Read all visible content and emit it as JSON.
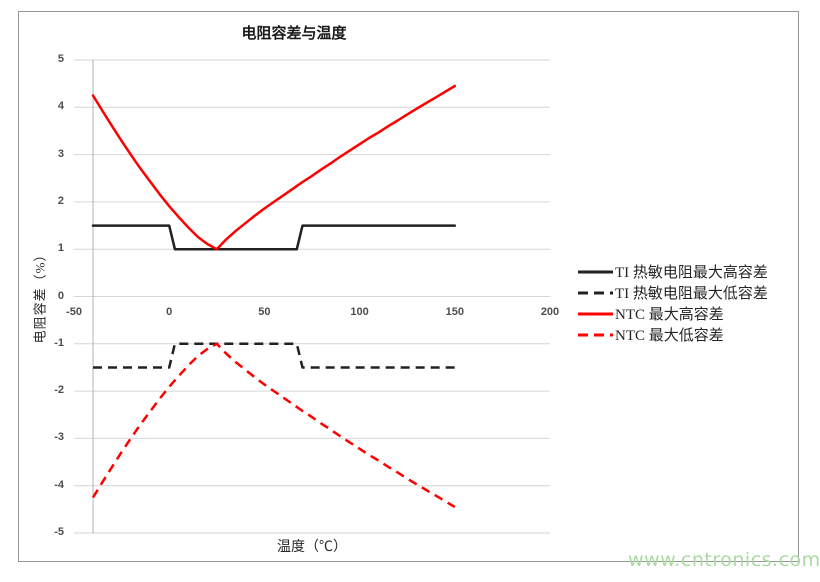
{
  "page": {
    "watermark": "www.cntronics.com"
  },
  "colors": {
    "grid": "#d6d6d6",
    "axis_line": "#b3b3b3",
    "chart_border": "#969696",
    "tick_label": "#4d4d4d",
    "title": "#1a1a1a",
    "black_series": "#212121",
    "red_series": "#fe0000",
    "watermark": "#abdba3"
  },
  "chart_data": {
    "type": "line",
    "title": "电阻容差与温度",
    "xlabel": "温度（℃）",
    "ylabel": "电阻容差（%）",
    "xlim": [
      -50,
      200
    ],
    "ylim": [
      -5,
      5
    ],
    "x_ticks": [
      -50,
      0,
      50,
      100,
      150,
      200
    ],
    "y_ticks": [
      5,
      4,
      3,
      2,
      1,
      0,
      -1,
      -2,
      -3,
      -4,
      -5
    ],
    "grid": "horizontal",
    "legend_position": "right",
    "y_axis_cross_x": -40,
    "series": [
      {
        "name": "TI 热敏电阻最大高容差",
        "color": "#212121",
        "dash": "solid",
        "points": [
          [
            -40,
            1.5
          ],
          [
            0,
            1.5
          ],
          [
            3,
            1.0
          ],
          [
            67,
            1.0
          ],
          [
            70,
            1.5
          ],
          [
            150,
            1.5
          ]
        ]
      },
      {
        "name": "TI 热敏电阻最大低容差",
        "color": "#212121",
        "dash": "dashed",
        "points": [
          [
            -40,
            -1.5
          ],
          [
            0,
            -1.5
          ],
          [
            3,
            -1.0
          ],
          [
            67,
            -1.0
          ],
          [
            70,
            -1.5
          ],
          [
            150,
            -1.5
          ]
        ]
      },
      {
        "name": "NTC 最大高容差",
        "color": "#fe0000",
        "dash": "solid",
        "points": [
          [
            -40,
            4.25
          ],
          [
            -35,
            3.92
          ],
          [
            -30,
            3.6
          ],
          [
            -25,
            3.29
          ],
          [
            -20,
            2.99
          ],
          [
            -15,
            2.7
          ],
          [
            -10,
            2.43
          ],
          [
            -5,
            2.16
          ],
          [
            0,
            1.91
          ],
          [
            5,
            1.68
          ],
          [
            10,
            1.46
          ],
          [
            15,
            1.26
          ],
          [
            20,
            1.11
          ],
          [
            25,
            1.0
          ],
          [
            30,
            1.21
          ],
          [
            35,
            1.39
          ],
          [
            40,
            1.55
          ],
          [
            45,
            1.71
          ],
          [
            50,
            1.86
          ],
          [
            55,
            2.0
          ],
          [
            60,
            2.14
          ],
          [
            65,
            2.28
          ],
          [
            70,
            2.42
          ],
          [
            75,
            2.55
          ],
          [
            80,
            2.69
          ],
          [
            85,
            2.82
          ],
          [
            90,
            2.96
          ],
          [
            95,
            3.09
          ],
          [
            100,
            3.22
          ],
          [
            105,
            3.35
          ],
          [
            110,
            3.47
          ],
          [
            115,
            3.6
          ],
          [
            120,
            3.72
          ],
          [
            125,
            3.85
          ],
          [
            130,
            3.97
          ],
          [
            135,
            4.09
          ],
          [
            140,
            4.21
          ],
          [
            145,
            4.33
          ],
          [
            150,
            4.45
          ]
        ]
      },
      {
        "name": "NTC 最大低容差",
        "color": "#fe0000",
        "dash": "dashed",
        "points": [
          [
            -40,
            -4.25
          ],
          [
            -35,
            -3.92
          ],
          [
            -30,
            -3.6
          ],
          [
            -25,
            -3.29
          ],
          [
            -20,
            -2.99
          ],
          [
            -15,
            -2.7
          ],
          [
            -10,
            -2.43
          ],
          [
            -5,
            -2.16
          ],
          [
            0,
            -1.91
          ],
          [
            5,
            -1.68
          ],
          [
            10,
            -1.46
          ],
          [
            15,
            -1.26
          ],
          [
            20,
            -1.11
          ],
          [
            25,
            -1.0
          ],
          [
            30,
            -1.21
          ],
          [
            35,
            -1.39
          ],
          [
            40,
            -1.55
          ],
          [
            45,
            -1.71
          ],
          [
            50,
            -1.86
          ],
          [
            55,
            -2.0
          ],
          [
            60,
            -2.14
          ],
          [
            65,
            -2.28
          ],
          [
            70,
            -2.42
          ],
          [
            75,
            -2.55
          ],
          [
            80,
            -2.69
          ],
          [
            85,
            -2.82
          ],
          [
            90,
            -2.96
          ],
          [
            95,
            -3.09
          ],
          [
            100,
            -3.22
          ],
          [
            105,
            -3.35
          ],
          [
            110,
            -3.47
          ],
          [
            115,
            -3.6
          ],
          [
            120,
            -3.72
          ],
          [
            125,
            -3.85
          ],
          [
            130,
            -3.97
          ],
          [
            135,
            -4.09
          ],
          [
            140,
            -4.21
          ],
          [
            145,
            -4.33
          ],
          [
            150,
            -4.45
          ]
        ]
      }
    ]
  }
}
